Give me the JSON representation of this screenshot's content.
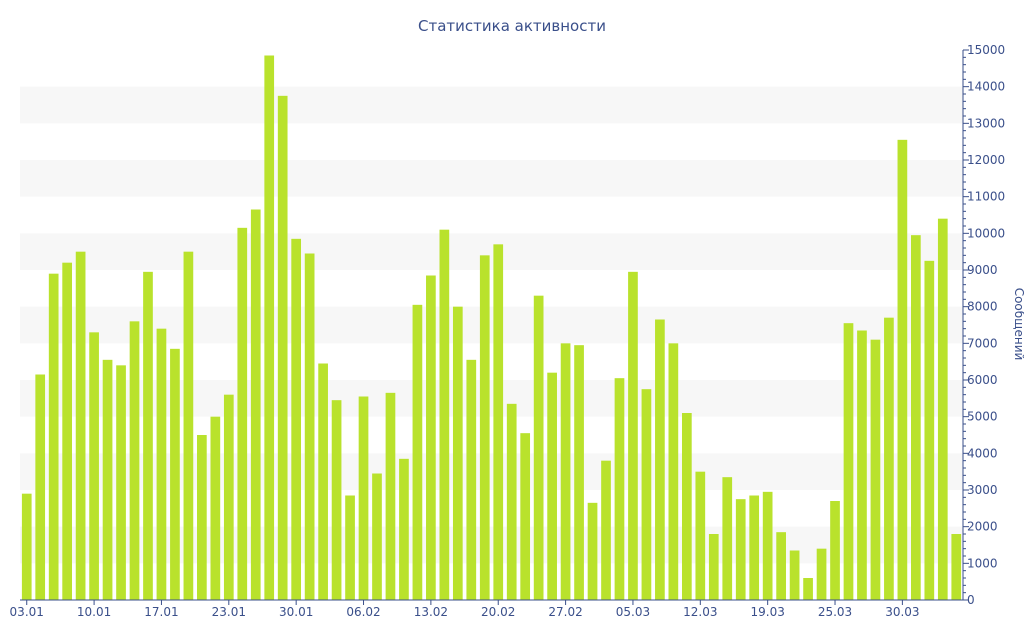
{
  "chart_data": {
    "type": "bar",
    "title": "Статистика активности",
    "xlabel": "",
    "ylabel": "Сообщений",
    "y_axis_side": "right",
    "ylim": [
      0,
      15000
    ],
    "y_ticks": [
      0,
      1000,
      2000,
      3000,
      4000,
      5000,
      6000,
      7000,
      8000,
      9000,
      10000,
      11000,
      12000,
      13000,
      14000,
      15000
    ],
    "grid": "alternating horizontal bands",
    "x_tick_labels": [
      "03.01",
      "10.01",
      "17.01",
      "23.01",
      "30.01",
      "06.02",
      "13.02",
      "20.02",
      "27.02",
      "05.03",
      "12.03",
      "19.03",
      "25.03",
      "30.03"
    ],
    "x_tick_positions": [
      0,
      5,
      10,
      15,
      20,
      25,
      30,
      35,
      40,
      45,
      50,
      55,
      60,
      65
    ],
    "values": [
      2900,
      6150,
      8900,
      9200,
      9500,
      7300,
      6550,
      6400,
      7600,
      8950,
      7400,
      6850,
      9500,
      4500,
      5000,
      5600,
      10150,
      10650,
      14850,
      13750,
      9850,
      9450,
      6450,
      5450,
      2850,
      5550,
      3450,
      5650,
      3850,
      8050,
      8850,
      10100,
      8000,
      6550,
      9400,
      9700,
      5350,
      4550,
      8300,
      6200,
      7000,
      6950,
      2650,
      3800,
      6050,
      8950,
      5750,
      7650,
      7000,
      5100,
      3500,
      1800,
      3350,
      2750,
      2850,
      2950,
      1850,
      1350,
      600,
      1400,
      2700,
      7550,
      7350,
      7100,
      7700,
      12550,
      9950,
      9250,
      10400,
      1800
    ],
    "colors": {
      "bar": "#b9e22c",
      "band": "#f7f7f7",
      "axis": "#3a4f8a",
      "text": "#3a4f8a",
      "background": "#ffffff"
    }
  }
}
